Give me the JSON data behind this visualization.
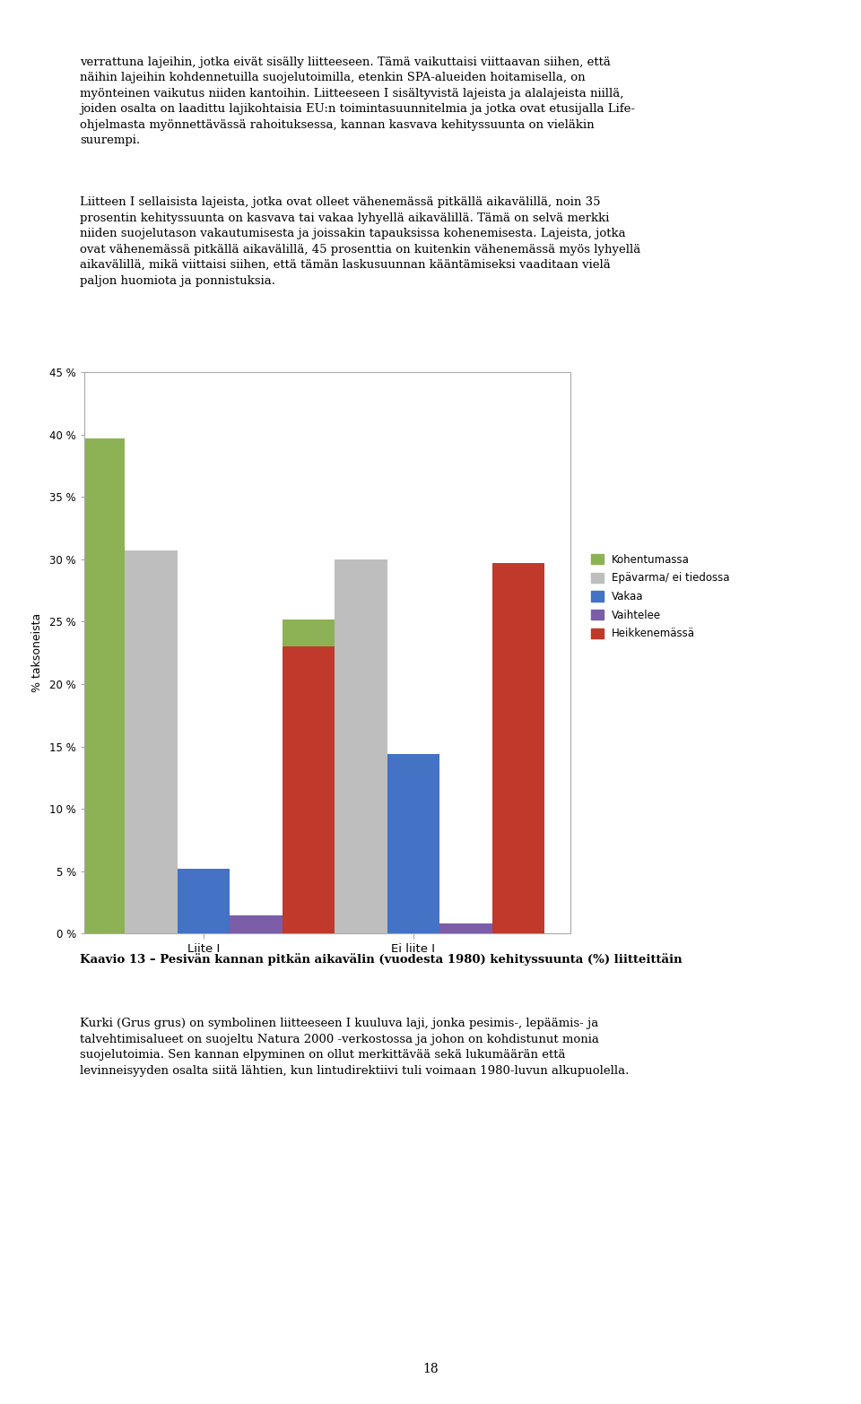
{
  "groups": [
    "Liite I",
    "Ei liite I"
  ],
  "series": [
    {
      "label": "Kohentumassa",
      "color": "#8DB255",
      "values": [
        39.7,
        25.2
      ]
    },
    {
      "label": "Epävarma/ ei tiedossa",
      "color": "#BEBEBE",
      "values": [
        30.7,
        30.0
      ]
    },
    {
      "label": "Vakaa",
      "color": "#4472C4",
      "values": [
        5.2,
        14.4
      ]
    },
    {
      "label": "Vaihtelee",
      "color": "#7B5EA7",
      "values": [
        1.5,
        0.8
      ]
    },
    {
      "label": "Heikkenemässä",
      "color": "#C0392B",
      "values": [
        23.0,
        29.7
      ]
    }
  ],
  "ylabel": "% taksoneista",
  "ylim": [
    0,
    45
  ],
  "yticks": [
    0,
    5,
    10,
    15,
    20,
    25,
    30,
    35,
    40,
    45
  ],
  "ytick_labels": [
    "0 %",
    "5 %",
    "10 %",
    "15 %",
    "20 %",
    "25 %",
    "30 %",
    "35 %",
    "40 %",
    "45 %"
  ],
  "bar_width": 0.11,
  "background_color": "#FFFFFF",
  "border_color": "#AAAAAA",
  "figure_width": 9.6,
  "figure_height": 15.66,
  "text_top1": "verrattuna lajeihin, jotka eivät sisälly liitteeseen. Tämä vaikuttaisi viittaavan siihen, että\nnäihin lajeihin kohdennetuilla suojelutoimilla, etenkin SPA-alueiden hoitamisella, on\nmyönteinen vaikutus niiden kantoihin. Liitteeseen I sisältyvistä lajeista ja alalajeista niillä,\njoiden osalta on laadittu lajikohtaisia EU:n toimintasuunnitelmia ja jotka ovat etusijalla Life-\nohjelmasta myönnettävässä rahoituksessa, kannan kasvava kehityssuunta on vieläkin\nsuurempi.",
  "text_top2": "Liitteen I sellaisista lajeista, jotka ovat olleet vähenemässä pitkällä aikavälillä, noin 35\nprosentin kehityssuunta on kasvava tai vakaa lyhyellä aikavälillä. Tämä on selvä merkki\nniiden suojelutason vakautumisesta ja joissakin tapauksissa kohenemisesta. Lajeista, jotka\novat vähenemässä pitkällä aikavälillä, 45 prosenttia on kuitenkin vähenemässä myös lyhyellä\naikavälillä, mikä viittaisi siihen, että tämän laskusuunnan kääntämiseksi vaaditaan vielä\npaljon huomiota ja ponnistuksia.",
  "caption": "Kaavio 13 – Pesivän kannan pitkän aikavälin (vuodesta 1980) kehityssuunta (%) liitteittäin",
  "text_bottom": "Kurki (Grus grus) on symbolinen liitteeseen I kuuluva laji, jonka pesimis-, lepäämis- ja\ntalvehtimisalueet on suojeltu Natura 2000 -verkostossa ja johon on kohdistunut monia\nsuojelutoimia. Sen kannan elpyminen on ollut merkittävää sekä lukumäärän että\nlevinneisyyden osalta siitä lähtien, kun lintudirektiivi tuli voimaan 1980-luvun alkupuolella.",
  "page_number": "18"
}
